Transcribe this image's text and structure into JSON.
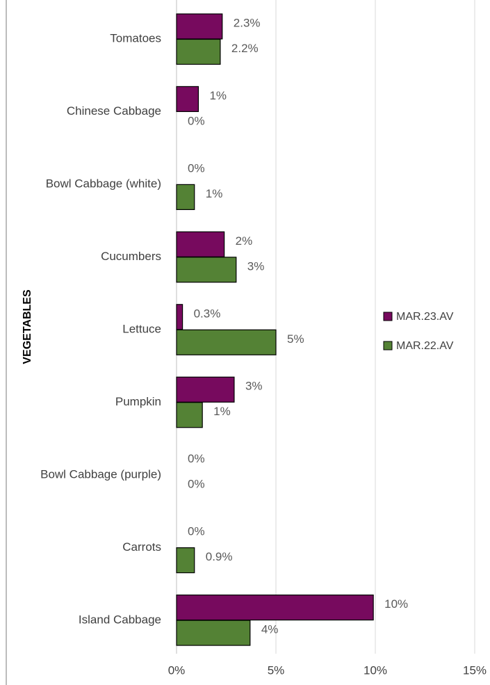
{
  "chart_data": {
    "type": "bar",
    "orientation": "horizontal",
    "y_label": "VEGETABLES",
    "categories": [
      "Tomatoes",
      "Chinese Cabbage",
      "Bowl Cabbage (white)",
      "Cucumbers",
      "Lettuce",
      "Pumpkin",
      "Bowl Cabbage (purple)",
      "Carrots",
      "Island Cabbage"
    ],
    "series": [
      {
        "name": "MAR.23.AV",
        "color": "#770a5e",
        "values": [
          2.3,
          1.1,
          0,
          2.4,
          0.3,
          2.9,
          0,
          0,
          9.9
        ],
        "value_labels": [
          "2.3%",
          "1%",
          "0%",
          "2%",
          "0.3%",
          "3%",
          "0%",
          "0%",
          "10%"
        ]
      },
      {
        "name": "MAR.22.AV",
        "color": "#548235",
        "values": [
          2.2,
          0,
          0.9,
          3.0,
          5.0,
          1.3,
          0,
          0.9,
          3.7
        ],
        "value_labels": [
          "2.2%",
          "0%",
          "1%",
          "3%",
          "5%",
          "1%",
          "0%",
          "0.9%",
          "4%"
        ]
      }
    ],
    "xlim": [
      0,
      15
    ],
    "xticks": [
      {
        "value": 0,
        "label": "0%"
      },
      {
        "value": 5,
        "label": "5%"
      },
      {
        "value": 10,
        "label": "10%"
      },
      {
        "value": 15,
        "label": "15%"
      }
    ],
    "grid": true,
    "legend": "right"
  }
}
